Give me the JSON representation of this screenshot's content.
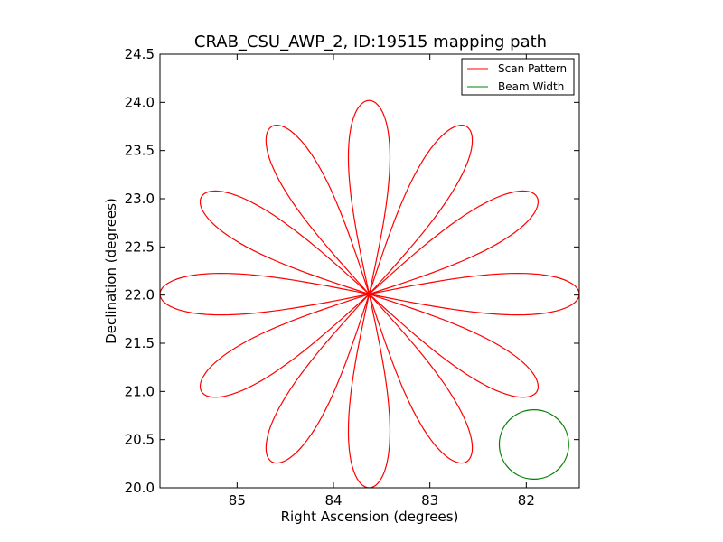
{
  "chart_data": {
    "type": "line",
    "title": "CRAB_CSU_AWP_2, ID:19515 mapping path",
    "xlabel": "Right Ascension (degrees)",
    "ylabel": "Declination (degrees)",
    "xlim": [
      85.8,
      81.45
    ],
    "ylim": [
      20.0,
      24.5
    ],
    "x_ticks": [
      85,
      84,
      83,
      82
    ],
    "x_tick_labels": [
      "85",
      "84",
      "83",
      "82"
    ],
    "y_ticks": [
      20.0,
      20.5,
      21.0,
      21.5,
      22.0,
      22.5,
      23.0,
      23.5,
      24.0,
      24.5
    ],
    "y_tick_labels": [
      "20.0",
      "20.5",
      "21.0",
      "21.5",
      "22.0",
      "22.5",
      "23.0",
      "23.5",
      "24.0",
      "24.5"
    ],
    "grid": false,
    "legend_position": "top-right",
    "legend": [
      "Scan Pattern",
      "Beam Width"
    ],
    "series": [
      {
        "name": "Scan Pattern",
        "color": "#ff0000",
        "shape": "rose pattern of 12 petals",
        "center": [
          83.63,
          22.01
        ],
        "petal_tips": [
          [
            83.63,
            24.02
          ],
          [
            82.62,
            23.75
          ],
          [
            81.89,
            23.02
          ],
          [
            81.45,
            22.01
          ],
          [
            81.89,
            21.0
          ],
          [
            82.62,
            20.27
          ],
          [
            83.63,
            20.0
          ],
          [
            84.64,
            20.27
          ],
          [
            85.37,
            21.0
          ],
          [
            85.8,
            22.01
          ],
          [
            85.37,
            23.02
          ],
          [
            84.64,
            23.75
          ]
        ]
      },
      {
        "name": "Beam Width",
        "color": "#008000",
        "shape": "circle",
        "center": [
          81.92,
          20.45
        ],
        "radius_deg": 0.36
      }
    ]
  }
}
